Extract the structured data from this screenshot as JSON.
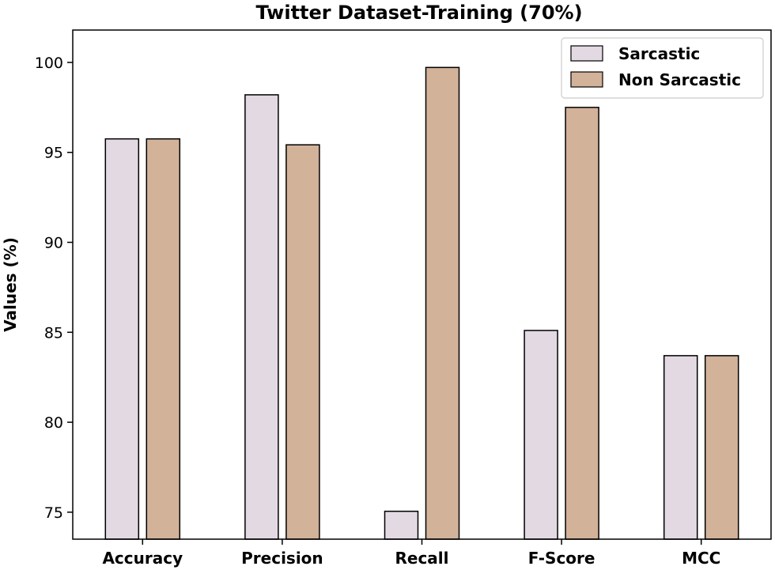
{
  "chart_data": {
    "type": "bar",
    "title": "Twitter Dataset-Training (70%)",
    "xlabel": "",
    "ylabel": "Values (%)",
    "categories": [
      "Accuracy",
      "Precision",
      "Recall",
      "F-Score",
      "MCC"
    ],
    "series": [
      {
        "name": "Sarcastic",
        "color": "#e2d9e3",
        "values": [
          95.75,
          98.2,
          75.05,
          85.1,
          83.7
        ]
      },
      {
        "name": "Non Sarcastic",
        "color": "#d3b29a",
        "values": [
          95.75,
          95.42,
          99.72,
          97.5,
          83.7
        ]
      }
    ],
    "ylim": [
      73.5,
      101.8
    ],
    "yticks": [
      75,
      80,
      85,
      90,
      95,
      100
    ],
    "grid": false,
    "legend_position": "top-right"
  }
}
